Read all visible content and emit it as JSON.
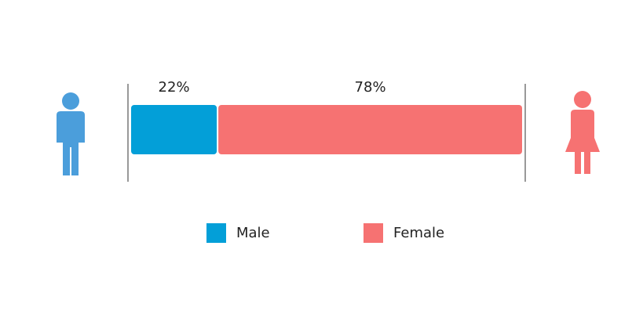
{
  "chart_data": {
    "type": "bar",
    "orientation": "horizontal-stacked",
    "categories": [
      "Male",
      "Female"
    ],
    "values": [
      22,
      78
    ],
    "unit": "%",
    "data_labels": [
      "22%",
      "78%"
    ],
    "legend": {
      "placement": "bottom",
      "entries": [
        "Male",
        "Female"
      ]
    },
    "title": "",
    "xlabel": "",
    "ylabel": ""
  },
  "colors": {
    "male": "#039fd8",
    "female": "#f67272",
    "male_icon": "#4b9edb",
    "female_icon": "#f67272",
    "divider": "#999999"
  },
  "icons": [
    "male-person-icon",
    "female-person-icon"
  ]
}
